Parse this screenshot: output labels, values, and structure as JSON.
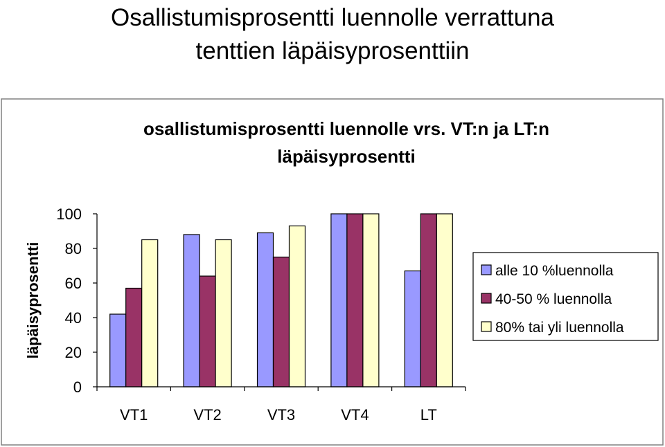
{
  "page": {
    "title_line1": "Osallistumisprosentti luennolle verrattuna",
    "title_line2": "tenttien läpäisyprosenttiin"
  },
  "colors": {
    "series": [
      "#9999FF",
      "#993366",
      "#FFFFCC"
    ],
    "frame": "#808080",
    "plot_background": "#FFFFFF"
  },
  "chart_data": {
    "type": "bar",
    "title_line1": "osallistumisprosentti luennolle vrs. VT:n ja LT:n",
    "title_line2": "läpäisyprosentti",
    "ylabel": "läpäisyprosentti",
    "xlabel": "",
    "categories": [
      "VT1",
      "VT2",
      "VT3",
      "VT4",
      "LT"
    ],
    "ylim": [
      0,
      100
    ],
    "yticks": [
      0,
      20,
      40,
      60,
      80,
      100
    ],
    "grid": false,
    "legend_position": "right",
    "series": [
      {
        "name": "alle 10 %luennolla",
        "values": [
          42,
          88,
          89,
          100,
          67
        ]
      },
      {
        "name": "40-50 % luennolla",
        "values": [
          57,
          64,
          75,
          100,
          100
        ]
      },
      {
        "name": "80% tai yli luennolla",
        "values": [
          85,
          85,
          93,
          100,
          100
        ]
      }
    ]
  }
}
